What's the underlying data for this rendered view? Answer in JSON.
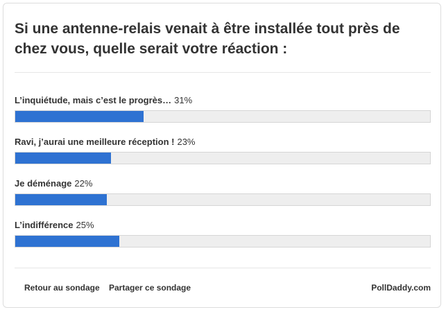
{
  "poll": {
    "question": "Si une antenne-relais venait à être installée tout près de chez vous, quelle serait votre réaction :",
    "answers": [
      {
        "label": "L’inquiétude, mais c’est le progrès…",
        "percent_text": "31%",
        "fraction": 0.31
      },
      {
        "label": "Ravi, j’aurai une meilleure réception !",
        "percent_text": "23%",
        "fraction": 0.23
      },
      {
        "label": "Je déménage",
        "percent_text": "22%",
        "fraction": 0.22
      },
      {
        "label": "L’indifférence",
        "percent_text": "25%",
        "fraction": 0.25
      }
    ],
    "bar_color": "#2e72d2",
    "footer": {
      "return_label": "Retour au sondage",
      "share_label": "Partager ce sondage",
      "brand_label": "PollDaddy.com"
    }
  }
}
